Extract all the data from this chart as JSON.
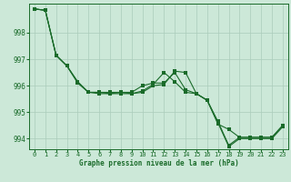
{
  "background_color": "#cce8d8",
  "grid_color": "#aaccbb",
  "line_color": "#1a6b2a",
  "marker_color": "#1a6b2a",
  "xlabel": "Graphe pression niveau de la mer (hPa)",
  "xlim": [
    -0.5,
    23.5
  ],
  "ylim": [
    993.6,
    999.1
  ],
  "yticks": [
    994,
    995,
    996,
    997,
    998
  ],
  "xticks": [
    0,
    1,
    2,
    3,
    4,
    5,
    6,
    7,
    8,
    9,
    10,
    11,
    12,
    13,
    14,
    15,
    16,
    17,
    18,
    19,
    20,
    21,
    22,
    23
  ],
  "series": [
    [
      998.9,
      998.85,
      997.15,
      996.75,
      996.15,
      995.75,
      995.75,
      995.75,
      995.75,
      995.75,
      996.0,
      996.1,
      996.1,
      996.5,
      995.85,
      995.7,
      995.45,
      994.65,
      993.75,
      994.05,
      994.05,
      994.05,
      994.05,
      994.5
    ],
    [
      998.9,
      998.85,
      997.15,
      996.75,
      996.15,
      995.75,
      995.75,
      995.7,
      995.75,
      995.7,
      995.8,
      996.05,
      996.5,
      996.15,
      995.75,
      995.7,
      995.45,
      994.55,
      994.35,
      994.05,
      994.05,
      994.05,
      994.05,
      994.5
    ],
    [
      998.9,
      998.85,
      997.15,
      996.75,
      996.1,
      995.75,
      995.7,
      995.7,
      995.7,
      995.7,
      995.75,
      996.0,
      996.05,
      996.55,
      996.5,
      995.7,
      995.45,
      994.6,
      993.7,
      994.0,
      994.0,
      994.0,
      994.0,
      994.45
    ]
  ],
  "linewidth": 0.8,
  "markersize": 2.2,
  "label_fontsize": 5.5,
  "tick_fontsize": 5,
  "xlabel_fontsize": 5.5
}
